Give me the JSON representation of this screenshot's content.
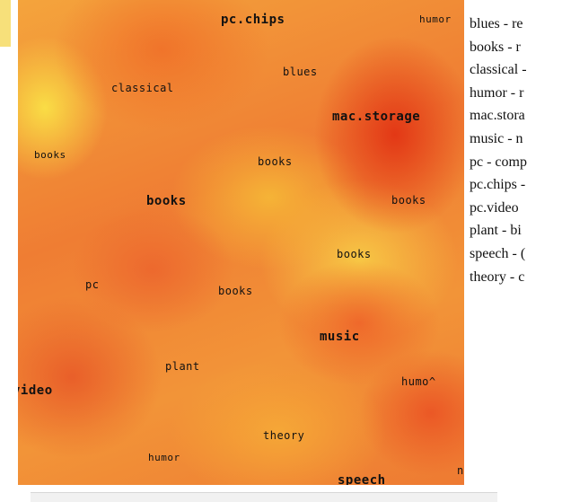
{
  "map": {
    "tags": [
      {
        "text": "pc.chips"
      },
      {
        "text": "humor"
      },
      {
        "text": "blues"
      },
      {
        "text": "classical"
      },
      {
        "text": "mac.storage"
      },
      {
        "text": "books"
      },
      {
        "text": "books"
      },
      {
        "text": "books"
      },
      {
        "text": "books"
      },
      {
        "text": "books"
      },
      {
        "text": "pc"
      },
      {
        "text": "books"
      },
      {
        "text": "music"
      },
      {
        "text": "plant"
      },
      {
        "text": "video"
      },
      {
        "text": "humo^"
      },
      {
        "text": "theory"
      },
      {
        "text": "humor"
      },
      {
        "text": "speech"
      },
      {
        "text": "n"
      }
    ]
  },
  "legend": {
    "items": [
      "blues - re",
      "books - r",
      "classical -",
      "humor - r",
      "mac.stora",
      "music - n",
      "pc - comp",
      "pc.chips -",
      "pc.video",
      "plant - bi",
      "speech - (",
      "theory - c"
    ]
  }
}
